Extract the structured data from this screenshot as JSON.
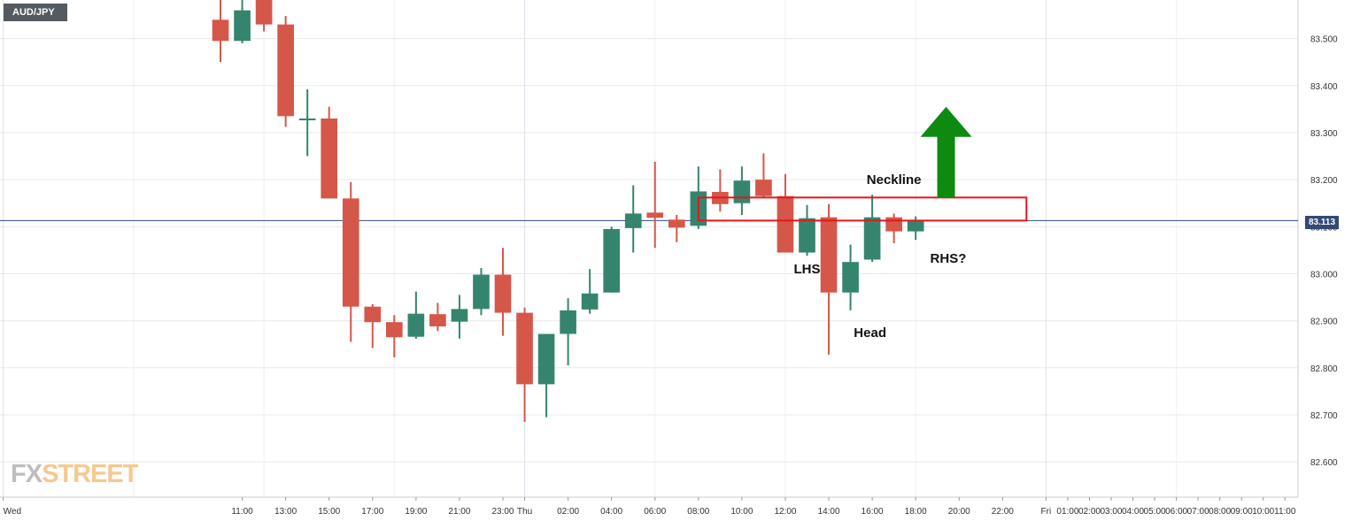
{
  "symbol": "AUD/JPY",
  "logo": {
    "part1": "FX",
    "part2": "STREET"
  },
  "colors": {
    "bull": "#35856e",
    "bear": "#d5574a",
    "grid": "#e6e9ee",
    "price_line": "#2d4a8a",
    "neckline_box": "#e8141c",
    "arrow": "#0e8a10"
  },
  "chart_data": {
    "type": "candlestick",
    "title": "",
    "xlabel": "",
    "ylabel": "",
    "ylim": [
      82.525,
      83.582
    ],
    "current_price": 83.113,
    "current_price_label": "83.113",
    "y_ticks": [
      83.5,
      83.4,
      83.3,
      83.2,
      83.1,
      83.0,
      82.9,
      82.8,
      82.7,
      82.6
    ],
    "y_tick_labels": [
      "83.500",
      "83.400",
      "83.300",
      "83.200",
      "83.100",
      "83.000",
      "82.900",
      "82.800",
      "82.700",
      "82.600"
    ],
    "x_labels": [
      "Wed",
      "11:00",
      "13:00",
      "15:00",
      "17:00",
      "19:00",
      "21:00",
      "23:00",
      "Thu",
      "02:00",
      "04:00",
      "06:00",
      "08:00",
      "10:00",
      "12:00",
      "14:00",
      "16:00",
      "18:00",
      "20:00",
      "22:00",
      "Fri",
      "01:00",
      "02:00",
      "03:00",
      "04:00",
      "05:00",
      "06:00",
      "07:00",
      "08:00",
      "09:00",
      "10:00",
      "11:00"
    ],
    "x_label_hours": [
      0,
      11,
      13,
      15,
      17,
      19,
      21,
      23,
      24,
      26,
      28,
      30,
      32,
      34,
      36,
      38,
      40,
      42,
      44,
      46,
      48,
      49,
      50,
      51,
      52,
      53,
      54,
      55,
      56,
      57,
      58,
      59
    ],
    "candle_start_hour": 10,
    "candles": [
      {
        "o": 83.54,
        "h": 83.59,
        "l": 83.45,
        "c": 83.495
      },
      {
        "o": 83.495,
        "h": 83.59,
        "l": 83.49,
        "c": 83.56
      },
      {
        "o": 83.6,
        "h": 83.61,
        "l": 83.515,
        "c": 83.53
      },
      {
        "o": 83.53,
        "h": 83.548,
        "l": 83.312,
        "c": 83.335
      },
      {
        "o": 83.33,
        "h": 83.392,
        "l": 83.25,
        "c": 83.33
      },
      {
        "o": 83.33,
        "h": 83.355,
        "l": 83.162,
        "c": 83.16
      },
      {
        "o": 83.16,
        "h": 83.195,
        "l": 82.855,
        "c": 82.93
      },
      {
        "o": 82.93,
        "h": 82.935,
        "l": 82.842,
        "c": 82.897
      },
      {
        "o": 82.897,
        "h": 82.912,
        "l": 82.822,
        "c": 82.865
      },
      {
        "o": 82.866,
        "h": 82.962,
        "l": 82.862,
        "c": 82.915
      },
      {
        "o": 82.914,
        "h": 82.938,
        "l": 82.878,
        "c": 82.888
      },
      {
        "o": 82.898,
        "h": 82.955,
        "l": 82.862,
        "c": 82.925
      },
      {
        "o": 82.925,
        "h": 83.012,
        "l": 82.912,
        "c": 82.998
      },
      {
        "o": 82.998,
        "h": 83.055,
        "l": 82.868,
        "c": 82.917
      },
      {
        "o": 82.917,
        "h": 82.928,
        "l": 82.685,
        "c": 82.765
      },
      {
        "o": 82.765,
        "h": 82.872,
        "l": 82.695,
        "c": 82.872
      },
      {
        "o": 82.872,
        "h": 82.948,
        "l": 82.805,
        "c": 82.922
      },
      {
        "o": 82.924,
        "h": 83.01,
        "l": 82.915,
        "c": 82.958
      },
      {
        "o": 82.96,
        "h": 83.1,
        "l": 82.96,
        "c": 83.095
      },
      {
        "o": 83.097,
        "h": 83.188,
        "l": 83.045,
        "c": 83.128
      },
      {
        "o": 83.13,
        "h": 83.238,
        "l": 83.055,
        "c": 83.119
      },
      {
        "o": 83.115,
        "h": 83.125,
        "l": 83.067,
        "c": 83.098
      },
      {
        "o": 83.102,
        "h": 83.228,
        "l": 83.095,
        "c": 83.175
      },
      {
        "o": 83.174,
        "h": 83.222,
        "l": 83.132,
        "c": 83.148
      },
      {
        "o": 83.15,
        "h": 83.228,
        "l": 83.125,
        "c": 83.198
      },
      {
        "o": 83.2,
        "h": 83.256,
        "l": 83.162,
        "c": 83.165
      },
      {
        "o": 83.165,
        "h": 83.212,
        "l": 83.045,
        "c": 83.045
      },
      {
        "o": 83.045,
        "h": 83.146,
        "l": 83.038,
        "c": 83.118
      },
      {
        "o": 83.12,
        "h": 83.148,
        "l": 82.828,
        "c": 82.96
      },
      {
        "o": 82.96,
        "h": 83.062,
        "l": 82.922,
        "c": 83.025
      },
      {
        "o": 83.03,
        "h": 83.168,
        "l": 83.025,
        "c": 83.12
      },
      {
        "o": 83.12,
        "h": 83.128,
        "l": 83.065,
        "c": 83.09
      },
      {
        "o": 83.09,
        "h": 83.122,
        "l": 83.072,
        "c": 83.113
      }
    ],
    "annotations": [
      {
        "text": "Neckline",
        "hour": 41.0,
        "price": 83.198
      },
      {
        "text": "LHS",
        "hour": 37.0,
        "price": 83.008
      },
      {
        "text": "Head",
        "hour": 39.9,
        "price": 82.873
      },
      {
        "text": "RHS?",
        "hour": 43.5,
        "price": 83.031
      }
    ],
    "neckline_zone": {
      "hour_start": 32.0,
      "hour_end": 47.1,
      "price_top": 83.162,
      "price_bottom": 83.113
    },
    "arrow": {
      "hour": 43.4,
      "price_base": 83.162,
      "price_tip": 83.355
    }
  }
}
